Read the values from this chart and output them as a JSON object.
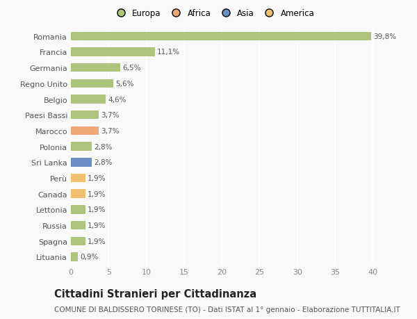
{
  "categories": [
    "Lituania",
    "Spagna",
    "Russia",
    "Lettonia",
    "Canada",
    "Perù",
    "Sri Lanka",
    "Polonia",
    "Marocco",
    "Paesi Bassi",
    "Belgio",
    "Regno Unito",
    "Germania",
    "Francia",
    "Romania"
  ],
  "values": [
    0.9,
    1.9,
    1.9,
    1.9,
    1.9,
    1.9,
    2.8,
    2.8,
    3.7,
    3.7,
    4.6,
    5.6,
    6.5,
    11.1,
    39.8
  ],
  "labels": [
    "0,9%",
    "1,9%",
    "1,9%",
    "1,9%",
    "1,9%",
    "1,9%",
    "2,8%",
    "2,8%",
    "3,7%",
    "3,7%",
    "4,6%",
    "5,6%",
    "6,5%",
    "11,1%",
    "39,8%"
  ],
  "colors": [
    "#adc47d",
    "#adc47d",
    "#adc47d",
    "#adc47d",
    "#f0c070",
    "#f0c070",
    "#6b8fc4",
    "#adc47d",
    "#f0a878",
    "#adc47d",
    "#adc47d",
    "#adc47d",
    "#adc47d",
    "#adc47d",
    "#adc47d"
  ],
  "legend_labels": [
    "Europa",
    "Africa",
    "Asia",
    "America"
  ],
  "legend_colors": [
    "#adc47d",
    "#f0a878",
    "#6b8fc4",
    "#f0c070"
  ],
  "title": "Cittadini Stranieri per Cittadinanza",
  "subtitle": "COMUNE DI BALDISSERO TORINESE (TO) - Dati ISTAT al 1° gennaio - Elaborazione TUTTITALIA.IT",
  "xlim": [
    0,
    42
  ],
  "xticks": [
    0,
    5,
    10,
    15,
    20,
    25,
    30,
    35,
    40
  ],
  "background_color": "#f9f9f9",
  "plot_bg_color": "#f9f9f9",
  "grid_color": "#ffffff",
  "bar_height": 0.55,
  "title_fontsize": 10.5,
  "subtitle_fontsize": 7.5,
  "label_fontsize": 7.5,
  "tick_fontsize": 8,
  "legend_fontsize": 8.5
}
